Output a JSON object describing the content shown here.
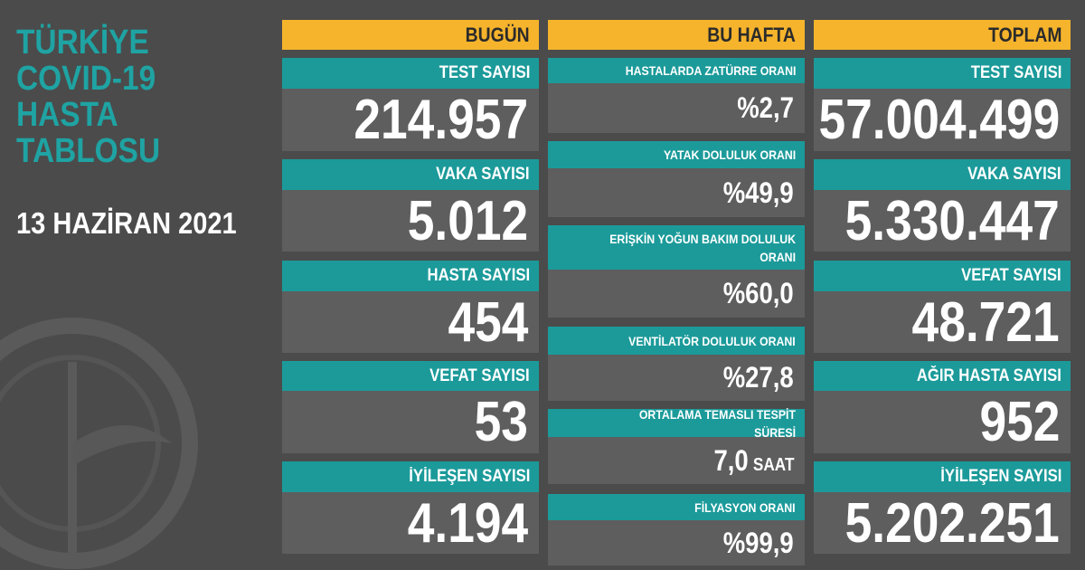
{
  "title_lines": [
    "TÜRKİYE",
    "COVID-19",
    "HASTA",
    "TABLOSU"
  ],
  "date": "13 HAZİRAN 2021",
  "columns": [
    {
      "header": "BUGÜN",
      "cards": [
        {
          "label": "TEST SAYISI",
          "value": "214.957"
        },
        {
          "label": "VAKA SAYISI",
          "value": "5.012"
        },
        {
          "label": "HASTA SAYISI",
          "value": "454"
        },
        {
          "label": "VEFAT SAYISI",
          "value": "53"
        },
        {
          "label": "İYİLEŞEN SAYISI",
          "value": "4.194"
        }
      ]
    },
    {
      "header": "BU HAFTA",
      "cards": [
        {
          "label": "HASTALARDA ZATÜRRE ORANI",
          "value": "%2,7"
        },
        {
          "label": "YATAK DOLULUK ORANI",
          "value": "%49,9"
        },
        {
          "label": "ERİŞKİN YOĞUN BAKIM DOLULUK ORANI",
          "value": "%60,0"
        },
        {
          "label": "VENTİLATÖR DOLULUK ORANI",
          "value": "%27,8"
        },
        {
          "label": "ORTALAMA TEMASLI TESPİT SÜRESİ",
          "value": "7,0",
          "unit": "SAAT"
        },
        {
          "label": "FİLYASYON ORANI",
          "value": "%99,9"
        }
      ]
    },
    {
      "header": "TOPLAM",
      "cards": [
        {
          "label": "TEST SAYISI",
          "value": "57.004.499"
        },
        {
          "label": "VAKA SAYISI",
          "value": "5.330.447"
        },
        {
          "label": "VEFAT SAYISI",
          "value": "48.721"
        },
        {
          "label": "AĞIR HASTA SAYISI",
          "value": "952"
        },
        {
          "label": "İYİLEŞEN SAYISI",
          "value": "5.202.251"
        }
      ]
    }
  ]
}
